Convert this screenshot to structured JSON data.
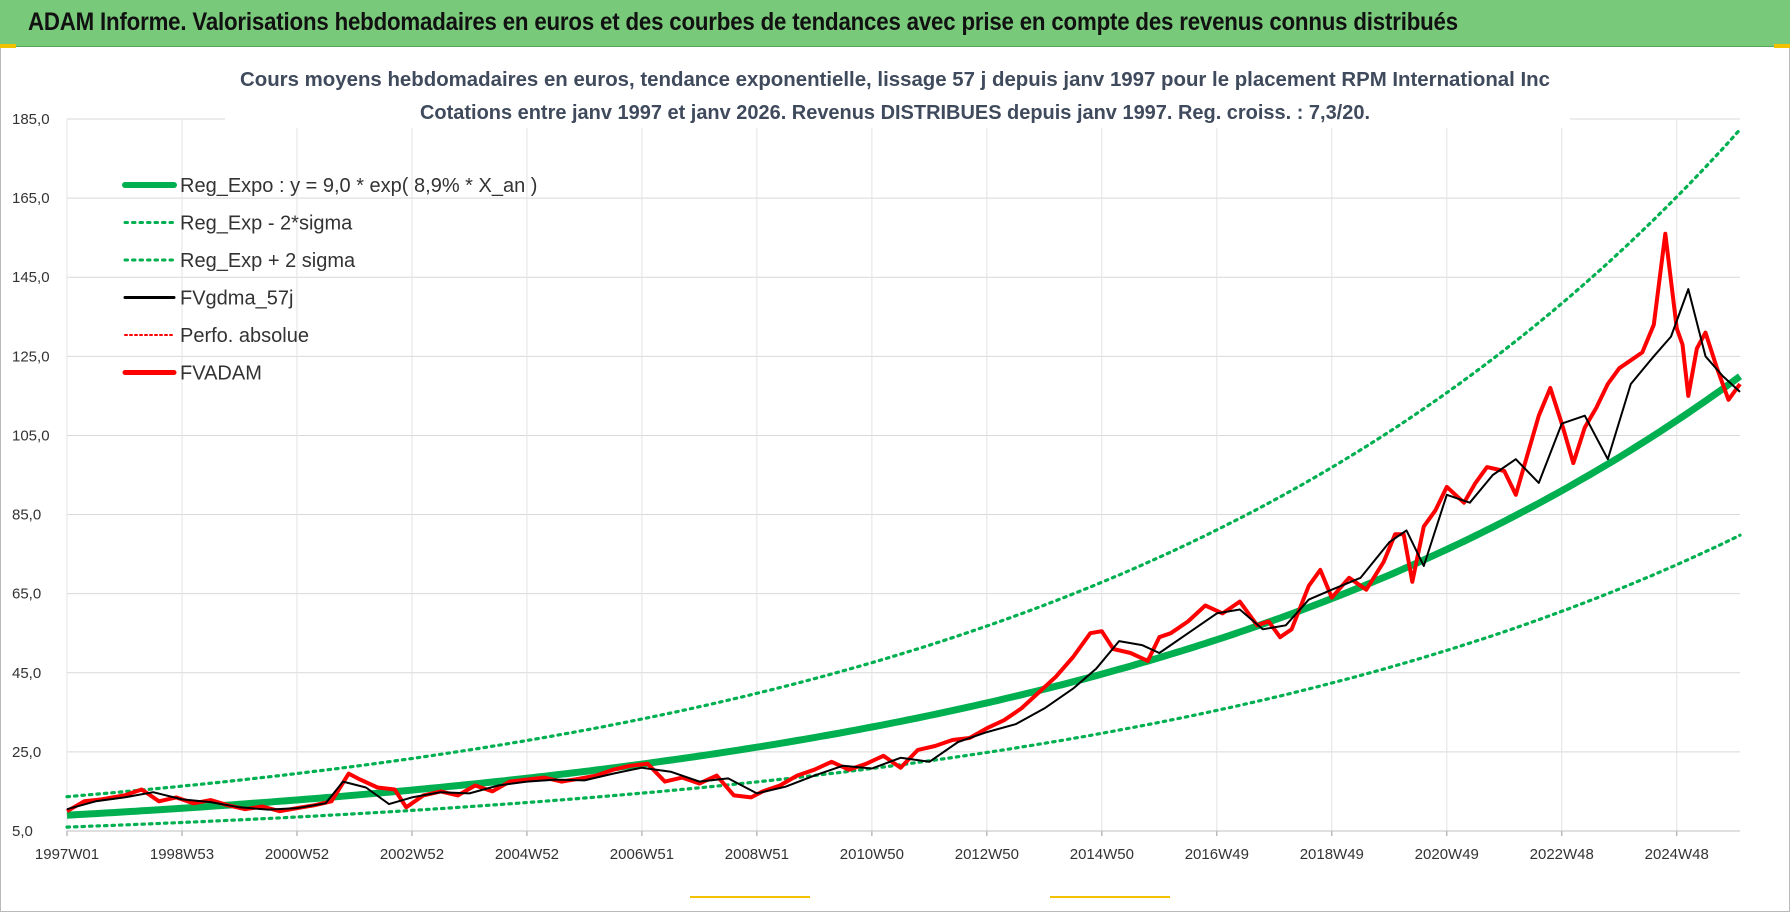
{
  "banner": {
    "title": "ADAM Informe. Valorisations hebdomadaires en euros et des courbes de tendances avec prise en compte des revenus connus distribués"
  },
  "colors": {
    "banner_bg": "#79c97a",
    "reg_expo": "#00b050",
    "band": "#00b050",
    "fvgdma": "#000000",
    "perfo": "#ff0000",
    "fvadam": "#ff0000",
    "accent": "#f2c200"
  },
  "chart_data": {
    "type": "line",
    "title": "Cours moyens hebdomadaires en euros, tendance exponentielle, lissage 57 j depuis janv 1997  pour le placement RPM International Inc",
    "subtitle": "Cotations entre janv 1997 et janv 2026. Revenus DISTRIBUES depuis janv 1997. Reg. croiss. : 7,3/20.",
    "xlabel": "",
    "ylabel": "",
    "ylim": [
      5,
      185
    ],
    "yticks": [
      "5,0",
      "25,0",
      "45,0",
      "65,0",
      "85,0",
      "105,0",
      "125,0",
      "145,0",
      "165,0",
      "185,0"
    ],
    "xticks": [
      "1997W01",
      "1998W53",
      "2000W52",
      "2002W52",
      "2004W52",
      "2006W51",
      "2008W51",
      "2010W50",
      "2012W50",
      "2014W50",
      "2016W49",
      "2018W49",
      "2020W49",
      "2022W48",
      "2024W48"
    ],
    "xtick_years": [
      1997.0,
      1999.0,
      2001.0,
      2003.0,
      2005.0,
      2007.0,
      2009.0,
      2011.0,
      2013.0,
      2015.0,
      2017.0,
      2019.0,
      2021.0,
      2023.0,
      2025.0
    ],
    "xlim": [
      1997.0,
      2026.1
    ],
    "grid": true,
    "legend_position": "top-left",
    "regression": {
      "a": 9.0,
      "rate": 0.089,
      "sigma_factor_low": 0.665,
      "sigma_factor_high": 1.52
    },
    "series": [
      {
        "name": "Reg_Expo : y = 9,0 * exp( 8,9% *  X_an )",
        "style": "thick-solid",
        "color": "#00b050"
      },
      {
        "name": "Reg_Exp - 2*sigma",
        "style": "dotted",
        "color": "#00b050"
      },
      {
        "name": "Reg_Exp + 2 sigma",
        "style": "dotted",
        "color": "#00b050"
      },
      {
        "name": "FVgdma_57j",
        "style": "solid",
        "color": "#000000",
        "x": [
          1997.0,
          1997.5,
          1998.0,
          1998.5,
          1999.0,
          1999.5,
          2000.0,
          2000.5,
          2001.0,
          2001.5,
          2001.8,
          2002.2,
          2002.6,
          2003.0,
          2003.5,
          2004.0,
          2004.5,
          2005.0,
          2005.5,
          2006.0,
          2006.5,
          2007.0,
          2007.5,
          2008.0,
          2008.5,
          2009.0,
          2009.5,
          2010.0,
          2010.5,
          2011.0,
          2011.5,
          2012.0,
          2012.5,
          2013.0,
          2013.5,
          2014.0,
          2014.5,
          2014.9,
          2015.3,
          2015.7,
          2016.0,
          2016.5,
          2017.0,
          2017.4,
          2017.8,
          2018.2,
          2018.6,
          2019.0,
          2019.5,
          2020.0,
          2020.3,
          2020.6,
          2021.0,
          2021.4,
          2021.8,
          2022.2,
          2022.6,
          2023.0,
          2023.4,
          2023.8,
          2024.2,
          2024.6,
          2024.9,
          2025.2,
          2025.5,
          2025.8,
          2026.1
        ],
        "y": [
          10.5,
          12.5,
          13.5,
          14.8,
          13.0,
          12.3,
          11.0,
          10.4,
          10.8,
          12.0,
          17.5,
          16.0,
          11.8,
          13.5,
          14.8,
          14.5,
          16.5,
          17.5,
          18.0,
          17.8,
          19.5,
          21.0,
          20.0,
          17.5,
          18.3,
          14.5,
          16.2,
          19.0,
          21.5,
          20.8,
          23.5,
          22.5,
          27.5,
          30.0,
          32.0,
          36.0,
          41.0,
          46.0,
          53.0,
          52.0,
          50.0,
          55.0,
          60.0,
          61.0,
          56.0,
          57.0,
          63.5,
          66.0,
          69.0,
          78.0,
          81.0,
          72.0,
          90.0,
          88.0,
          95.0,
          99.0,
          93.0,
          108.0,
          110.0,
          99.0,
          118.0,
          125.0,
          130.0,
          142.0,
          125.0,
          120.0,
          116.0
        ]
      },
      {
        "name": "Perfo. absolue",
        "style": "dotted",
        "color": "#ff0000"
      },
      {
        "name": "FVADAM",
        "style": "thick-solid",
        "color": "#ff0000",
        "x": [
          1997.0,
          1997.3,
          1997.6,
          1998.0,
          1998.3,
          1998.6,
          1998.9,
          1999.2,
          1999.5,
          1999.8,
          2000.1,
          2000.4,
          2000.7,
          2001.0,
          2001.3,
          2001.6,
          2001.9,
          2002.1,
          2002.4,
          2002.7,
          2002.9,
          2003.2,
          2003.5,
          2003.8,
          2004.1,
          2004.4,
          2004.7,
          2005.0,
          2005.3,
          2005.6,
          2005.9,
          2006.2,
          2006.5,
          2006.8,
          2007.1,
          2007.4,
          2007.7,
          2008.0,
          2008.3,
          2008.6,
          2008.9,
          2009.1,
          2009.4,
          2009.7,
          2010.0,
          2010.3,
          2010.6,
          2010.9,
          2011.2,
          2011.5,
          2011.8,
          2012.1,
          2012.4,
          2012.7,
          2013.0,
          2013.3,
          2013.6,
          2013.9,
          2014.2,
          2014.5,
          2014.8,
          2015.0,
          2015.2,
          2015.5,
          2015.8,
          2016.0,
          2016.2,
          2016.5,
          2016.8,
          2017.1,
          2017.4,
          2017.7,
          2017.9,
          2018.1,
          2018.3,
          2018.6,
          2018.8,
          2019.0,
          2019.3,
          2019.6,
          2019.9,
          2020.1,
          2020.25,
          2020.4,
          2020.6,
          2020.8,
          2021.0,
          2021.3,
          2021.5,
          2021.7,
          2022.0,
          2022.2,
          2022.4,
          2022.6,
          2022.8,
          2023.0,
          2023.2,
          2023.4,
          2023.6,
          2023.8,
          2024.0,
          2024.2,
          2024.4,
          2024.6,
          2024.8,
          2025.0,
          2025.1,
          2025.2,
          2025.35,
          2025.5,
          2025.7,
          2025.9,
          2026.1
        ],
        "y": [
          10.0,
          12.5,
          13.0,
          14.0,
          15.5,
          12.5,
          13.5,
          12.0,
          12.8,
          11.5,
          10.5,
          11.2,
          10.0,
          10.8,
          11.5,
          12.5,
          19.5,
          18.0,
          16.0,
          15.5,
          11.0,
          14.0,
          15.0,
          14.0,
          16.5,
          15.0,
          17.5,
          18.0,
          18.5,
          17.5,
          18.2,
          19.0,
          20.5,
          21.5,
          22.0,
          17.5,
          18.5,
          17.0,
          19.0,
          14.0,
          13.5,
          15.0,
          16.5,
          19.0,
          20.5,
          22.5,
          20.5,
          22.0,
          24.0,
          21.0,
          25.5,
          26.5,
          28.0,
          28.5,
          31.0,
          33.0,
          36.0,
          40.0,
          44.0,
          49.0,
          55.0,
          55.5,
          51.0,
          50.0,
          48.0,
          54.0,
          55.0,
          58.0,
          62.0,
          60.0,
          63.0,
          57.0,
          58.0,
          54.0,
          56.0,
          67.0,
          71.0,
          64.0,
          69.0,
          66.0,
          73.0,
          80.0,
          80.0,
          68.0,
          82.0,
          86.0,
          92.0,
          88.0,
          93.0,
          97.0,
          96.0,
          90.0,
          100.0,
          110.0,
          117.0,
          108.0,
          98.0,
          107.0,
          112.0,
          118.0,
          122.0,
          124.0,
          126.0,
          133.0,
          156.0,
          132.0,
          128.0,
          115.0,
          127.0,
          131.0,
          122.0,
          114.0,
          118.0
        ]
      }
    ]
  }
}
